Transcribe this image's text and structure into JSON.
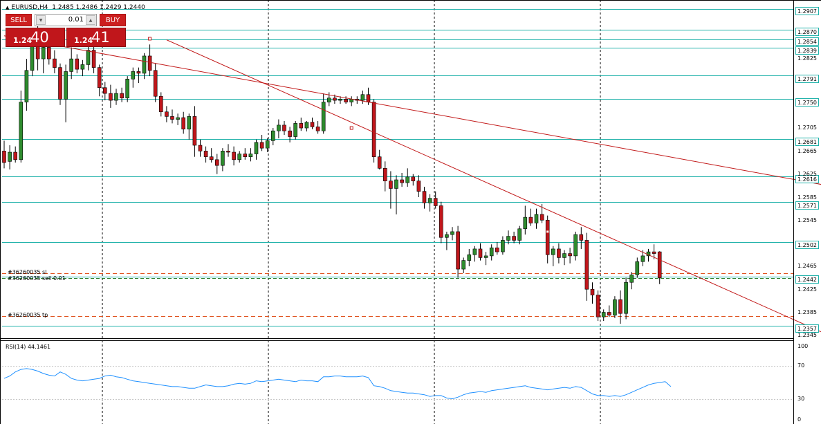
{
  "title": {
    "symbol": "EURUSD,H4",
    "ohlc": "1.2485 1.2486 1.2429 1.2440"
  },
  "trade_panel": {
    "sell_label": "SELL",
    "buy_label": "BUY",
    "lot": "0.01",
    "bid_prefix": "1.24",
    "bid_main": "40",
    "ask_prefix": "1.24",
    "ask_main": "41"
  },
  "colors": {
    "bull": "#2e8b2e",
    "bear": "#c0161b",
    "level_line": "#20b2aa",
    "trend_line": "#c21a1a",
    "order_line": "#e0531f",
    "rsi_line": "#1e90ff"
  },
  "price_tags": [
    "1.2907",
    "1.2870",
    "1.2854",
    "1.2839",
    "1.2791",
    "1.2750",
    "1.2681",
    "1.2616",
    "1.2571",
    "1.2502",
    "1.2442",
    "1.2357"
  ],
  "axis_ticks": [
    "1.2825",
    "1.2705",
    "1.2665",
    "1.2625",
    "1.2585",
    "1.2545",
    "1.2465",
    "1.2425",
    "1.2385",
    "1.2345"
  ],
  "order_labels": {
    "sl": "#36260035 sl",
    "sell": "#36260035 sell 0.01",
    "tp": "#36260035 tp"
  },
  "rsi": {
    "title": "RSI(14) 44.1461",
    "ticks": [
      "100",
      "70",
      "30",
      "0"
    ]
  },
  "chart_data": {
    "type": "candlestick",
    "symbol": "EURUSD",
    "timeframe": "H4",
    "ylim": [
      1.2335,
      1.2915
    ],
    "levels": [
      1.2907,
      1.287,
      1.2854,
      1.2839,
      1.2791,
      1.275,
      1.2681,
      1.2616,
      1.2571,
      1.2502,
      1.2442,
      1.2357
    ],
    "orders": {
      "sl": 1.2448,
      "entry": 1.244,
      "tp": 1.2373
    },
    "trendlines": [
      {
        "from": [
          0,
          1.286
        ],
        "to": [
          147,
          1.26
        ]
      },
      {
        "from": [
          29,
          1.2853
        ],
        "to": [
          147,
          1.2341
        ]
      }
    ],
    "candles": [
      [
        1.266,
        1.2678,
        1.263,
        1.264
      ],
      [
        1.2642,
        1.267,
        1.2628,
        1.2658
      ],
      [
        1.2658,
        1.2668,
        1.264,
        1.2645
      ],
      [
        1.2645,
        1.2765,
        1.264,
        1.2745
      ],
      [
        1.2745,
        1.282,
        1.273,
        1.28
      ],
      [
        1.28,
        1.2862,
        1.279,
        1.2845
      ],
      [
        1.2845,
        1.288,
        1.28,
        1.282
      ],
      [
        1.282,
        1.285,
        1.2795,
        1.284
      ],
      [
        1.284,
        1.2848,
        1.281,
        1.282
      ],
      [
        1.282,
        1.2835,
        1.2795,
        1.2805
      ],
      [
        1.2805,
        1.2812,
        1.274,
        1.275
      ],
      [
        1.275,
        1.281,
        1.271,
        1.2798
      ],
      [
        1.2798,
        1.284,
        1.2785,
        1.282
      ],
      [
        1.282,
        1.2828,
        1.2795,
        1.2802
      ],
      [
        1.2802,
        1.2818,
        1.279,
        1.281
      ],
      [
        1.281,
        1.2848,
        1.28,
        1.2835
      ],
      [
        1.2835,
        1.2845,
        1.2795,
        1.2805
      ],
      [
        1.2805,
        1.281,
        1.2755,
        1.277
      ],
      [
        1.277,
        1.278,
        1.2748,
        1.276
      ],
      [
        1.276,
        1.2775,
        1.2735,
        1.2748
      ],
      [
        1.2748,
        1.2768,
        1.274,
        1.276
      ],
      [
        1.276,
        1.277,
        1.2745,
        1.2752
      ],
      [
        1.2752,
        1.279,
        1.2745,
        1.2785
      ],
      [
        1.2785,
        1.2805,
        1.277,
        1.2798
      ],
      [
        1.2798,
        1.2805,
        1.2778,
        1.2795
      ],
      [
        1.2795,
        1.283,
        1.2785,
        1.2825
      ],
      [
        1.2825,
        1.2845,
        1.279,
        1.28
      ],
      [
        1.28,
        1.2812,
        1.2745,
        1.2755
      ],
      [
        1.2755,
        1.2762,
        1.272,
        1.2728
      ],
      [
        1.2728,
        1.2738,
        1.271,
        1.272
      ],
      [
        1.272,
        1.2732,
        1.2708,
        1.2715
      ],
      [
        1.2715,
        1.2725,
        1.2705,
        1.2718
      ],
      [
        1.2718,
        1.2728,
        1.269,
        1.2698
      ],
      [
        1.2698,
        1.2725,
        1.268,
        1.272
      ],
      [
        1.272,
        1.2738,
        1.265,
        1.267
      ],
      [
        1.267,
        1.268,
        1.265,
        1.266
      ],
      [
        1.266,
        1.2668,
        1.264,
        1.265
      ],
      [
        1.265,
        1.2665,
        1.264,
        1.2645
      ],
      [
        1.2645,
        1.2655,
        1.262,
        1.2635
      ],
      [
        1.2635,
        1.2665,
        1.2625,
        1.266
      ],
      [
        1.266,
        1.2672,
        1.265,
        1.2658
      ],
      [
        1.2658,
        1.2668,
        1.2635,
        1.2645
      ],
      [
        1.2645,
        1.266,
        1.264,
        1.2655
      ],
      [
        1.2655,
        1.2665,
        1.2645,
        1.265
      ],
      [
        1.265,
        1.2665,
        1.2642,
        1.2655
      ],
      [
        1.2655,
        1.268,
        1.2645,
        1.2675
      ],
      [
        1.2675,
        1.2688,
        1.266,
        1.2665
      ],
      [
        1.2665,
        1.2682,
        1.2658,
        1.2678
      ],
      [
        1.2678,
        1.27,
        1.267,
        1.2695
      ],
      [
        1.2695,
        1.2715,
        1.2682,
        1.2705
      ],
      [
        1.2705,
        1.2712,
        1.2688,
        1.2695
      ],
      [
        1.2695,
        1.2702,
        1.2675,
        1.2685
      ],
      [
        1.2685,
        1.2712,
        1.268,
        1.2708
      ],
      [
        1.2708,
        1.2718,
        1.2695,
        1.27
      ],
      [
        1.27,
        1.2712,
        1.2694,
        1.271
      ],
      [
        1.271,
        1.2718,
        1.2698,
        1.2702
      ],
      [
        1.2702,
        1.2712,
        1.269,
        1.2695
      ],
      [
        1.2695,
        1.276,
        1.269,
        1.2745
      ],
      [
        1.2745,
        1.2762,
        1.2738,
        1.2752
      ],
      [
        1.2752,
        1.2758,
        1.2742,
        1.2748
      ],
      [
        1.2748,
        1.2755,
        1.2742,
        1.275
      ],
      [
        1.275,
        1.2755,
        1.2742,
        1.2745
      ],
      [
        1.2745,
        1.2755,
        1.2738,
        1.275
      ],
      [
        1.275,
        1.2755,
        1.2742,
        1.2748
      ],
      [
        1.2748,
        1.2765,
        1.2742,
        1.2758
      ],
      [
        1.2758,
        1.277,
        1.274,
        1.2745
      ],
      [
        1.2745,
        1.275,
        1.264,
        1.265
      ],
      [
        1.265,
        1.2662,
        1.2628,
        1.263
      ],
      [
        1.263,
        1.2642,
        1.259,
        1.2608
      ],
      [
        1.2608,
        1.2625,
        1.256,
        1.2595
      ],
      [
        1.2595,
        1.2618,
        1.255,
        1.261
      ],
      [
        1.261,
        1.2622,
        1.2598,
        1.2605
      ],
      [
        1.2605,
        1.263,
        1.2598,
        1.2615
      ],
      [
        1.2615,
        1.262,
        1.26,
        1.2608
      ],
      [
        1.2608,
        1.2618,
        1.258,
        1.259
      ],
      [
        1.259,
        1.2598,
        1.256,
        1.257
      ],
      [
        1.257,
        1.2585,
        1.2555,
        1.2578
      ],
      [
        1.2578,
        1.259,
        1.256,
        1.2565
      ],
      [
        1.2565,
        1.2572,
        1.25,
        1.251
      ],
      [
        1.251,
        1.252,
        1.2488,
        1.2515
      ],
      [
        1.2515,
        1.2528,
        1.2505,
        1.252
      ],
      [
        1.252,
        1.253,
        1.244,
        1.2455
      ],
      [
        1.2455,
        1.2475,
        1.2448,
        1.247
      ],
      [
        1.247,
        1.249,
        1.246,
        1.248
      ],
      [
        1.248,
        1.2495,
        1.2468,
        1.249
      ],
      [
        1.249,
        1.25,
        1.247,
        1.2475
      ],
      [
        1.2475,
        1.2485,
        1.2462,
        1.2478
      ],
      [
        1.2478,
        1.2498,
        1.247,
        1.2492
      ],
      [
        1.2492,
        1.2502,
        1.248,
        1.2485
      ],
      [
        1.2485,
        1.2512,
        1.248,
        1.2505
      ],
      [
        1.2505,
        1.2522,
        1.2498,
        1.2512
      ],
      [
        1.2512,
        1.252,
        1.25,
        1.2505
      ],
      [
        1.2505,
        1.253,
        1.2498,
        1.2525
      ],
      [
        1.2525,
        1.2565,
        1.2515,
        1.2545
      ],
      [
        1.2545,
        1.256,
        1.253,
        1.2535
      ],
      [
        1.2535,
        1.256,
        1.2525,
        1.255
      ],
      [
        1.255,
        1.2568,
        1.2535,
        1.254
      ],
      [
        1.254,
        1.2548,
        1.2465,
        1.248
      ],
      [
        1.248,
        1.2495,
        1.246,
        1.249
      ],
      [
        1.249,
        1.25,
        1.2465,
        1.2475
      ],
      [
        1.2475,
        1.2488,
        1.2462,
        1.2482
      ],
      [
        1.2482,
        1.2492,
        1.2465,
        1.2478
      ],
      [
        1.2478,
        1.252,
        1.247,
        1.2515
      ],
      [
        1.2515,
        1.2528,
        1.249,
        1.2505
      ],
      [
        1.2505,
        1.2518,
        1.24,
        1.242
      ],
      [
        1.242,
        1.2432,
        1.2395,
        1.241
      ],
      [
        1.241,
        1.2418,
        1.2365,
        1.2372
      ],
      [
        1.2372,
        1.2385,
        1.2365,
        1.238
      ],
      [
        1.238,
        1.2392,
        1.2372,
        1.2375
      ],
      [
        1.2375,
        1.2408,
        1.237,
        1.2402
      ],
      [
        1.2402,
        1.2418,
        1.236,
        1.2378
      ],
      [
        1.2378,
        1.244,
        1.2368,
        1.2432
      ],
      [
        1.2432,
        1.245,
        1.242,
        1.2445
      ],
      [
        1.2445,
        1.2475,
        1.244,
        1.2468
      ],
      [
        1.2468,
        1.2488,
        1.246,
        1.2478
      ],
      [
        1.2478,
        1.249,
        1.2468,
        1.2485
      ],
      [
        1.2485,
        1.2498,
        1.2472,
        1.2482
      ],
      [
        1.2485,
        1.2486,
        1.2429,
        1.244
      ]
    ],
    "rsi_ylim": [
      0,
      100
    ],
    "rsi_levels": [
      70,
      30
    ],
    "rsi_values": [
      55,
      58,
      63,
      66,
      67,
      66,
      64,
      61,
      59,
      58,
      63,
      60,
      55,
      53,
      52,
      53,
      54,
      55,
      58,
      59,
      57,
      56,
      54,
      52,
      51,
      50,
      49,
      48,
      47,
      46,
      45,
      45,
      44,
      43,
      43,
      45,
      47,
      46,
      45,
      45,
      46,
      48,
      49,
      48,
      49,
      52,
      51,
      52,
      53,
      54,
      53,
      52,
      51,
      53,
      52,
      52,
      51,
      57,
      57,
      58,
      58,
      57,
      57,
      57,
      58,
      56,
      46,
      45,
      43,
      40,
      39,
      38,
      37,
      37,
      36,
      35,
      33,
      34,
      34,
      31,
      30,
      32,
      35,
      37,
      38,
      39,
      38,
      40,
      41,
      42,
      43,
      44,
      45,
      46,
      44,
      43,
      42,
      41,
      42,
      43,
      44,
      43,
      45,
      44,
      40,
      36,
      34,
      34,
      33,
      34,
      33,
      35,
      38,
      41,
      44,
      47,
      49,
      50,
      51,
      45
    ]
  }
}
